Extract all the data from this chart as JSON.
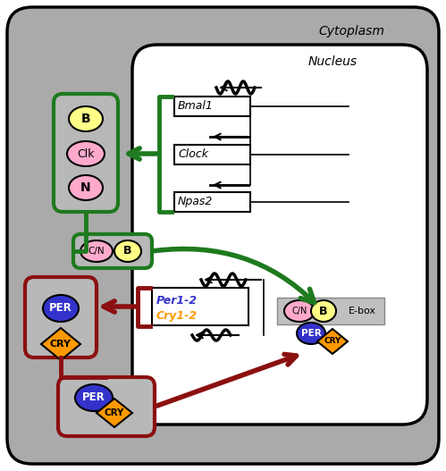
{
  "bg_outer": "#aaaaaa",
  "bg_cytoplasm": "#b8b8b8",
  "bg_nucleus": "#ffffff",
  "green": "#1e7a1e",
  "dark_red": "#8b1010",
  "black": "#000000",
  "gray_ebox": "#c0c0c0",
  "B_color": "#ffff88",
  "pink_color": "#ffaacc",
  "blue_per": "#3333cc",
  "orange_cry": "#ff9900",
  "title_cyto": "Cytoplasm",
  "title_nucl": "Nucleus",
  "lbl_bmal1": "Bmal1",
  "lbl_clock": "Clock",
  "lbl_npas2": "Npas2",
  "lbl_per12": "Per1-2",
  "lbl_cry12": "Cry1-2",
  "lbl_ebox": "E-box",
  "lbl_B": "B",
  "lbl_CN": "C/N",
  "lbl_Clk": "Clk",
  "lbl_N": "N",
  "lbl_PER": "PER",
  "lbl_CRY": "CRY"
}
